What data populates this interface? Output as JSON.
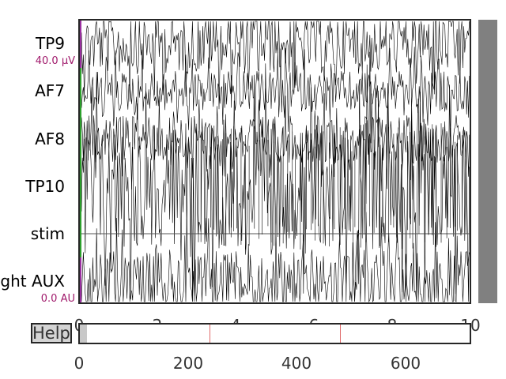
{
  "channels": [
    {
      "label": "TP9",
      "scale": "40.0 µV"
    },
    {
      "label": "AF7"
    },
    {
      "label": "AF8"
    },
    {
      "label": "TP10"
    },
    {
      "label": "stim"
    },
    {
      "label": "Right AUX",
      "scale": "0.0 AU"
    }
  ],
  "time_axis": {
    "ticks": [
      "0",
      "2",
      "4",
      "6",
      "8",
      "10"
    ]
  },
  "help_button": {
    "label": "Help"
  },
  "slider_axis": {
    "ticks": [
      "0",
      "200",
      "400",
      "600"
    ]
  },
  "colors": {
    "trace": "#000000",
    "scale_text": "#a0196b",
    "marker": "#e06a6a",
    "scrollbar": "#808080",
    "start_bar_purple": "#9b30a0",
    "start_bar_green": "#2ca02c"
  }
}
